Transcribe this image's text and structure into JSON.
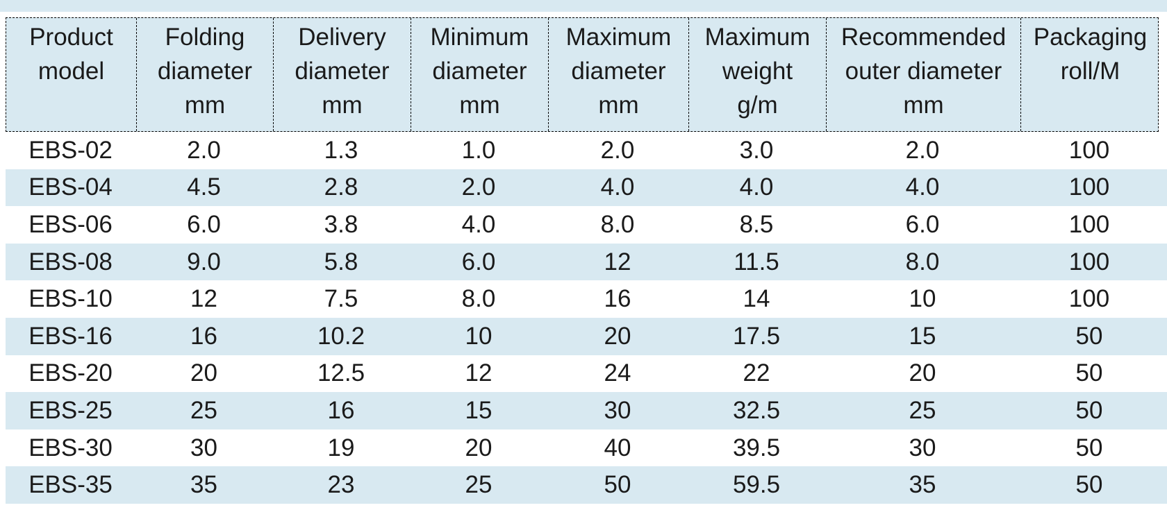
{
  "page": {
    "background": "#ffffff",
    "accent_blue": "#d8e9f1",
    "border_color": "#000000",
    "text_color": "#1a1a1a"
  },
  "table": {
    "columns": [
      {
        "id": "product-model",
        "lines": [
          "Product",
          "model",
          ""
        ]
      },
      {
        "id": "folding-diameter",
        "lines": [
          "Folding",
          "diameter",
          "mm"
        ]
      },
      {
        "id": "delivery-diameter",
        "lines": [
          "Delivery",
          "diameter",
          "mm"
        ]
      },
      {
        "id": "minimum-diameter",
        "lines": [
          "Minimum",
          "diameter",
          "mm"
        ]
      },
      {
        "id": "maximum-diameter",
        "lines": [
          "Maximum",
          "diameter",
          "mm"
        ]
      },
      {
        "id": "maximum-weight",
        "lines": [
          "Maximum",
          "weight",
          "g/m"
        ]
      },
      {
        "id": "recommended-outer-diameter",
        "lines": [
          "Recommended",
          "outer diameter",
          "mm"
        ]
      },
      {
        "id": "packaging",
        "lines": [
          "Packaging",
          "roll/M",
          ""
        ]
      }
    ],
    "rows": [
      {
        "model": "EBS-02",
        "values": [
          "EBS-02",
          "2.0",
          "1.3",
          "1.0",
          "2.0",
          "3.0",
          "2.0",
          "100"
        ]
      },
      {
        "model": "EBS-04",
        "values": [
          "EBS-04",
          "4.5",
          "2.8",
          "2.0",
          "4.0",
          "4.0",
          "4.0",
          "100"
        ]
      },
      {
        "model": "EBS-06",
        "values": [
          "EBS-06",
          "6.0",
          "3.8",
          "4.0",
          "8.0",
          "8.5",
          "6.0",
          "100"
        ]
      },
      {
        "model": "EBS-08",
        "values": [
          "EBS-08",
          "9.0",
          "5.8",
          "6.0",
          "12",
          "11.5",
          "8.0",
          "100"
        ]
      },
      {
        "model": "EBS-10",
        "values": [
          "EBS-10",
          "12",
          "7.5",
          "8.0",
          "16",
          "14",
          "10",
          "100"
        ]
      },
      {
        "model": "EBS-16",
        "values": [
          "EBS-16",
          "16",
          "10.2",
          "10",
          "20",
          "17.5",
          "15",
          "50"
        ]
      },
      {
        "model": "EBS-20",
        "values": [
          "EBS-20",
          "20",
          "12.5",
          "12",
          "24",
          "22",
          "20",
          "50"
        ]
      },
      {
        "model": "EBS-25",
        "values": [
          "EBS-25",
          "25",
          "16",
          "15",
          "30",
          "32.5",
          "25",
          "50"
        ]
      },
      {
        "model": "EBS-30",
        "values": [
          "EBS-30",
          "30",
          "19",
          "20",
          "40",
          "39.5",
          "30",
          "50"
        ]
      },
      {
        "model": "EBS-35",
        "values": [
          "EBS-35",
          "35",
          "23",
          "25",
          "50",
          "59.5",
          "35",
          "50"
        ]
      }
    ]
  }
}
